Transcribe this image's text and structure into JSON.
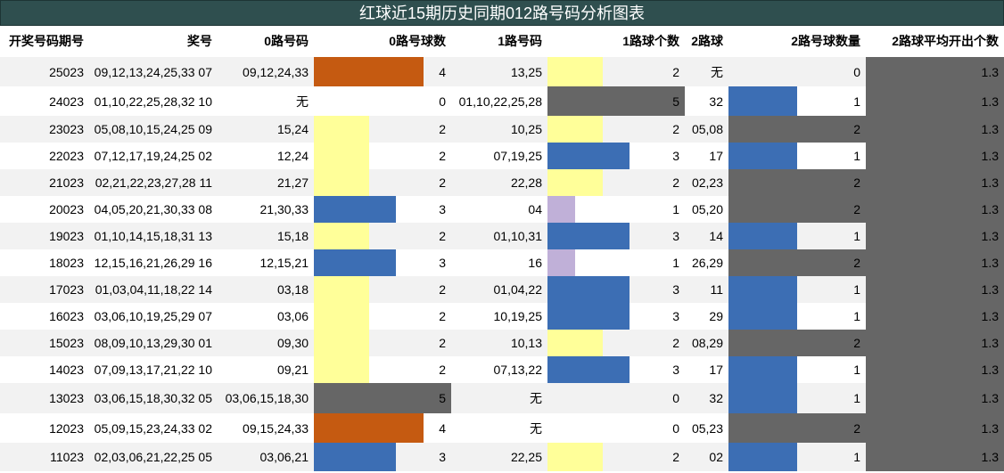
{
  "title": "红球近15期历史同期012路号码分析图表",
  "colors": {
    "title_bg": "#2f4f4f",
    "row_alt": "#f2f2f2",
    "yellow": "#ffff99",
    "blue": "#3c6eb4",
    "orange": "#c55a11",
    "gray": "#666666",
    "lavender": "#c0b0d8"
  },
  "headers": [
    "开奖号码期号",
    "奖号",
    "0路号码",
    "0路号球数",
    "1路号码",
    "1路球个数",
    "2路球",
    "2路号球数量",
    "2路球平均开出个数"
  ],
  "chart_data": {
    "type": "table",
    "title": "红球近15期历史同期012路号码分析图表",
    "columns": [
      "开奖号码期号",
      "奖号",
      "0路号码",
      "0路号球数",
      "1路号码",
      "1路球个数",
      "2路球",
      "2路号球数量",
      "2路球平均开出个数"
    ],
    "rows": [
      {
        "issue": "25023",
        "balls": "09,12,13,24,25,33 07",
        "r0": "09,12,24,33",
        "c0": 4,
        "r1": "13,25",
        "c1": 2,
        "r2": "无",
        "c2": 0,
        "avg": "1.3"
      },
      {
        "issue": "24023",
        "balls": "01,10,22,25,28,32 10",
        "r0": "无",
        "c0": 0,
        "r1": "01,10,22,25,28",
        "c1": 5,
        "r2": "32",
        "c2": 1,
        "avg": "1.3"
      },
      {
        "issue": "23023",
        "balls": "05,08,10,15,24,25 09",
        "r0": "15,24",
        "c0": 2,
        "r1": "10,25",
        "c1": 2,
        "r2": "05,08",
        "c2": 2,
        "avg": "1.3"
      },
      {
        "issue": "22023",
        "balls": "07,12,17,19,24,25 02",
        "r0": "12,24",
        "c0": 2,
        "r1": "07,19,25",
        "c1": 3,
        "r2": "17",
        "c2": 1,
        "avg": "1.3"
      },
      {
        "issue": "21023",
        "balls": "02,21,22,23,27,28 11",
        "r0": "21,27",
        "c0": 2,
        "r1": "22,28",
        "c1": 2,
        "r2": "02,23",
        "c2": 2,
        "avg": "1.3"
      },
      {
        "issue": "20023",
        "balls": "04,05,20,21,30,33 08",
        "r0": "21,30,33",
        "c0": 3,
        "r1": "04",
        "c1": 1,
        "r2": "05,20",
        "c2": 2,
        "avg": "1.3"
      },
      {
        "issue": "19023",
        "balls": "01,10,14,15,18,31 13",
        "r0": "15,18",
        "c0": 2,
        "r1": "01,10,31",
        "c1": 3,
        "r2": "14",
        "c2": 1,
        "avg": "1.3"
      },
      {
        "issue": "18023",
        "balls": "12,15,16,21,26,29 16",
        "r0": "12,15,21",
        "c0": 3,
        "r1": "16",
        "c1": 1,
        "r2": "26,29",
        "c2": 2,
        "avg": "1.3"
      },
      {
        "issue": "17023",
        "balls": "01,03,04,11,18,22 14",
        "r0": "03,18",
        "c0": 2,
        "r1": "01,04,22",
        "c1": 3,
        "r2": "11",
        "c2": 1,
        "avg": "1.3"
      },
      {
        "issue": "16023",
        "balls": "03,06,10,19,25,29 07",
        "r0": "03,06",
        "c0": 2,
        "r1": "10,19,25",
        "c1": 3,
        "r2": "29",
        "c2": 1,
        "avg": "1.3"
      },
      {
        "issue": "15023",
        "balls": "08,09,10,13,29,30 01",
        "r0": "09,30",
        "c0": 2,
        "r1": "10,13",
        "c1": 2,
        "r2": "08,29",
        "c2": 2,
        "avg": "1.3"
      },
      {
        "issue": "14023",
        "balls": "07,09,13,17,21,22 10",
        "r0": "09,21",
        "c0": 2,
        "r1": "07,13,22",
        "c1": 3,
        "r2": "17",
        "c2": 1,
        "avg": "1.3"
      },
      {
        "issue": "13023",
        "balls": "03,06,15,18,30,32 05",
        "r0": "03,06,15,18,30",
        "c0": 5,
        "r1": "无",
        "c1": 0,
        "r2": "32",
        "c2": 1,
        "avg": "1.3"
      },
      {
        "issue": "12023",
        "balls": "05,09,15,23,24,33 02",
        "r0": "09,15,24,33",
        "c0": 4,
        "r1": "无",
        "c1": 0,
        "r2": "05,23",
        "c2": 2,
        "avg": "1.3"
      },
      {
        "issue": "11023",
        "balls": "02,03,06,21,22,25 05",
        "r0": "03,06,21",
        "c0": 3,
        "r1": "22,25",
        "c1": 2,
        "r2": "02",
        "c2": 1,
        "avg": "1.3"
      }
    ]
  }
}
